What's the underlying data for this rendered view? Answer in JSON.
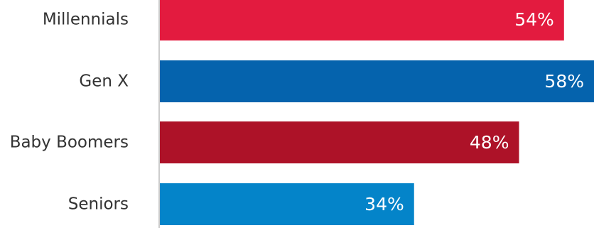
{
  "chart_data": {
    "type": "bar",
    "orientation": "horizontal",
    "title": "",
    "xlabel": "",
    "ylabel": "",
    "categories": [
      "Millennials",
      "Gen X",
      "Baby Boomers",
      "Seniors"
    ],
    "values": [
      54,
      58,
      48,
      34
    ],
    "value_labels": [
      "54%",
      "58%",
      "48%",
      "34%"
    ],
    "colors": [
      "#e31b3f",
      "#0563ad",
      "#ad1228",
      "#0484c9"
    ],
    "xlim": [
      0,
      58
    ],
    "grid": false,
    "legend": "none"
  }
}
